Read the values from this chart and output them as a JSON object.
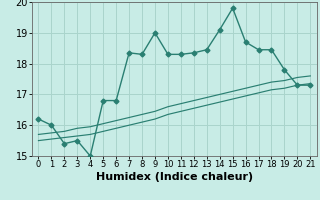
{
  "title": "",
  "xlabel": "Humidex (Indice chaleur)",
  "x": [
    0,
    1,
    2,
    3,
    4,
    5,
    6,
    7,
    8,
    9,
    10,
    11,
    12,
    13,
    14,
    15,
    16,
    17,
    18,
    19,
    20,
    21
  ],
  "y_main": [
    16.2,
    16.0,
    15.4,
    15.5,
    15.0,
    16.8,
    16.8,
    18.35,
    18.3,
    19.0,
    18.3,
    18.3,
    18.35,
    18.45,
    19.1,
    19.8,
    18.7,
    18.45,
    18.45,
    17.8,
    17.3,
    17.3
  ],
  "y_low": [
    15.5,
    15.55,
    15.6,
    15.65,
    15.7,
    15.8,
    15.9,
    16.0,
    16.1,
    16.2,
    16.35,
    16.45,
    16.55,
    16.65,
    16.75,
    16.85,
    16.95,
    17.05,
    17.15,
    17.2,
    17.3,
    17.35
  ],
  "y_high": [
    15.7,
    15.75,
    15.8,
    15.9,
    15.95,
    16.05,
    16.15,
    16.25,
    16.35,
    16.45,
    16.6,
    16.7,
    16.8,
    16.9,
    17.0,
    17.1,
    17.2,
    17.3,
    17.4,
    17.45,
    17.55,
    17.6
  ],
  "line_color": "#2a7f72",
  "bg_color": "#c8ece6",
  "grid_color": "#aad4cc",
  "ylim": [
    15,
    20
  ],
  "yticks": [
    15,
    16,
    17,
    18,
    19,
    20
  ],
  "xticks": [
    0,
    1,
    2,
    3,
    4,
    5,
    6,
    7,
    8,
    9,
    10,
    11,
    12,
    13,
    14,
    15,
    16,
    17,
    18,
    19,
    20,
    21
  ],
  "marker": "D",
  "markersize": 2.5,
  "linewidth": 1.0,
  "xlabel_fontsize": 8,
  "tick_fontsize": 6
}
